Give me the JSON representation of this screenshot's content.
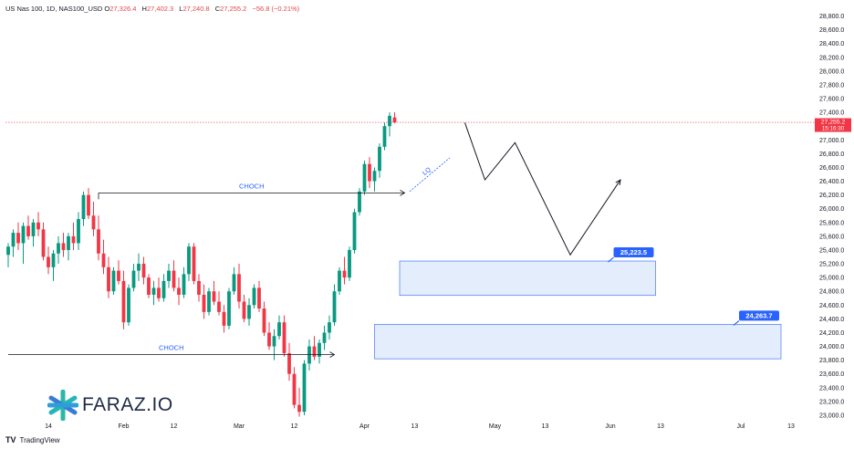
{
  "header": {
    "symbol": "US Nas 100, 1D, NAS100_USD",
    "o_label": "O",
    "open": "27,326.4",
    "h_label": "H",
    "high": "27,402.3",
    "l_label": "L",
    "low": "27,240.8",
    "c_label": "C",
    "close": "27,255.2",
    "change": "−56.8 (−0.21%)"
  },
  "branding": {
    "watermark": "FARAZ.IO",
    "tv_mark": "TV",
    "tv_text": "TradingView"
  },
  "colors": {
    "up": "#089981",
    "down": "#f23645",
    "zone_fill": "#dbe7fb",
    "zone_stroke": "#2962ff",
    "label_bg": "#2962ff",
    "price_line": "#f23645"
  },
  "chart_data": {
    "type": "candlestick",
    "ylim": [
      22960,
      28900
    ],
    "y_ticks": [
      "28,800.0",
      "28,600.0",
      "28,400.0",
      "28,200.0",
      "28,000.0",
      "27,800.0",
      "27,600.0",
      "27,400.0",
      "27,200.0",
      "27,000.0",
      "26,800.0",
      "26,600.0",
      "26,400.0",
      "26,200.0",
      "26,000.0",
      "25,800.0",
      "25,600.0",
      "25,400.0",
      "25,200.0",
      "25,000.0",
      "24,800.0",
      "24,600.0",
      "24,400.0",
      "24,200.0",
      "24,000.0",
      "23,800.0",
      "23,600.0",
      "23,400.0",
      "23,200.0",
      "23,000.0"
    ],
    "x_ticks": [
      "14",
      "Feb",
      "12",
      "Mar",
      "12",
      "Apr",
      "13",
      "May",
      "13",
      "Jun",
      "13",
      "Jul",
      "13"
    ],
    "x_tick_slots": [
      8,
      23,
      33,
      46,
      57,
      71,
      81,
      97,
      107,
      120,
      130,
      146,
      156
    ],
    "last_price": {
      "value": 27255.2,
      "price_text": "27,255.2",
      "countdown": "15:16:30"
    },
    "candles": [
      [
        25330,
        25500,
        25150,
        25450
      ],
      [
        25450,
        25700,
        25300,
        25650
      ],
      [
        25650,
        25800,
        25400,
        25500
      ],
      [
        25500,
        25800,
        25200,
        25750
      ],
      [
        25750,
        25900,
        25550,
        25600
      ],
      [
        25600,
        25850,
        25450,
        25800
      ],
      [
        25800,
        25950,
        25600,
        25700
      ],
      [
        25700,
        25800,
        25250,
        25300
      ],
      [
        25300,
        25450,
        25050,
        25150
      ],
      [
        25150,
        25400,
        24950,
        25350
      ],
      [
        25350,
        25600,
        25200,
        25500
      ],
      [
        25500,
        25650,
        25300,
        25400
      ],
      [
        25400,
        25650,
        25250,
        25600
      ],
      [
        25600,
        25800,
        25400,
        25500
      ],
      [
        25500,
        25950,
        25400,
        25850
      ],
      [
        25850,
        26250,
        25750,
        26200
      ],
      [
        26200,
        26300,
        25850,
        25900
      ],
      [
        25900,
        26100,
        25600,
        25700
      ],
      [
        25700,
        25900,
        25250,
        25350
      ],
      [
        25350,
        25550,
        25050,
        25150
      ],
      [
        25150,
        25300,
        24700,
        24800
      ],
      [
        24800,
        25150,
        24750,
        25100
      ],
      [
        25100,
        25250,
        24900,
        24950
      ],
      [
        24950,
        25100,
        24250,
        24350
      ],
      [
        24350,
        24900,
        24300,
        24850
      ],
      [
        24850,
        25200,
        24800,
        25100
      ],
      [
        25100,
        25350,
        24950,
        25200
      ],
      [
        25200,
        25300,
        24900,
        25000
      ],
      [
        25000,
        25050,
        24700,
        24750
      ],
      [
        24750,
        24950,
        24600,
        24850
      ],
      [
        24850,
        25000,
        24650,
        24700
      ],
      [
        24700,
        25050,
        24650,
        24950
      ],
      [
        24950,
        25200,
        24850,
        25100
      ],
      [
        25100,
        25250,
        24800,
        24850
      ],
      [
        24850,
        25000,
        24600,
        24750
      ],
      [
        24750,
        25150,
        24700,
        25050
      ],
      [
        25050,
        25500,
        24950,
        25450
      ],
      [
        25450,
        25500,
        24900,
        24950
      ],
      [
        24950,
        25050,
        24650,
        24750
      ],
      [
        24750,
        24900,
        24400,
        24500
      ],
      [
        24500,
        24850,
        24450,
        24800
      ],
      [
        24800,
        24950,
        24600,
        24650
      ],
      [
        24650,
        24800,
        24450,
        24500
      ],
      [
        24500,
        24600,
        24200,
        24300
      ],
      [
        24300,
        24850,
        24250,
        24800
      ],
      [
        24800,
        25150,
        24750,
        25050
      ],
      [
        25050,
        25200,
        24550,
        24650
      ],
      [
        24650,
        24750,
        24350,
        24400
      ],
      [
        24400,
        24700,
        24300,
        24600
      ],
      [
        24600,
        24900,
        24550,
        24850
      ],
      [
        24850,
        24950,
        24500,
        24550
      ],
      [
        24550,
        24650,
        24150,
        24200
      ],
      [
        24200,
        24350,
        23950,
        24000
      ],
      [
        24000,
        24250,
        23800,
        24150
      ],
      [
        24150,
        24450,
        24100,
        24350
      ],
      [
        24350,
        24450,
        23850,
        23900
      ],
      [
        23900,
        24050,
        23500,
        23600
      ],
      [
        23600,
        23700,
        23100,
        23150
      ],
      [
        23150,
        23400,
        22980,
        23050
      ],
      [
        23050,
        23800,
        23000,
        23750
      ],
      [
        23750,
        24100,
        23650,
        24000
      ],
      [
        24000,
        24150,
        23800,
        23850
      ],
      [
        23850,
        24100,
        23750,
        24050
      ],
      [
        24050,
        24300,
        23950,
        24200
      ],
      [
        24200,
        24450,
        24100,
        24350
      ],
      [
        24350,
        24900,
        24300,
        24800
      ],
      [
        24800,
        25150,
        24750,
        25100
      ],
      [
        25100,
        25300,
        24900,
        25000
      ],
      [
        25000,
        25450,
        24950,
        25400
      ],
      [
        25400,
        26000,
        25350,
        25950
      ],
      [
        25950,
        26300,
        25900,
        26250
      ],
      [
        26250,
        26700,
        26200,
        26650
      ],
      [
        26650,
        26750,
        26300,
        26400
      ],
      [
        26400,
        26600,
        26250,
        26550
      ],
      [
        26550,
        26950,
        26450,
        26900
      ],
      [
        26900,
        27250,
        26850,
        27200
      ],
      [
        27200,
        27400,
        27050,
        27350
      ],
      [
        27326.4,
        27402.3,
        27240.8,
        27255.2
      ]
    ],
    "zones": [
      {
        "from": 24740,
        "to": 25240,
        "slot_start": 78,
        "slot_end": 129,
        "label": "25,223.5"
      },
      {
        "from": 23820,
        "to": 24320,
        "slot_start": 73,
        "slot_end": 154,
        "label": "24,263.7"
      }
    ],
    "choch": [
      {
        "label": "CHOCH",
        "price": 26230,
        "slot_start": 18,
        "slot_end": 79
      },
      {
        "label": "CHOCH",
        "price": 23880,
        "slot_start": 0,
        "slot_end": 65
      }
    ],
    "lq": {
      "label": "LQ",
      "price_start": 26250,
      "price_end": 26740,
      "slot_start": 80,
      "slot_end": 88
    },
    "projection": [
      {
        "slot": 91,
        "price": 27250
      },
      {
        "slot": 95,
        "price": 26420
      },
      {
        "slot": 101,
        "price": 26960
      },
      {
        "slot": 112,
        "price": 25330
      },
      {
        "slot": 122,
        "price": 26420
      }
    ]
  }
}
